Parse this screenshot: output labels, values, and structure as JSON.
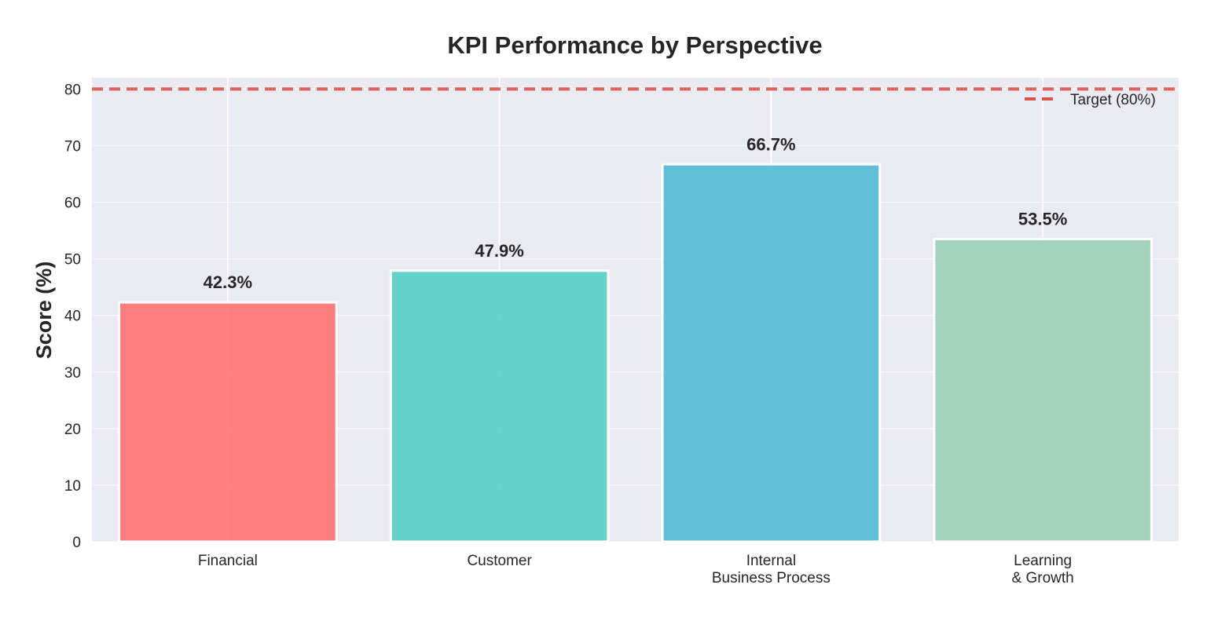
{
  "chart_data": {
    "type": "bar",
    "title": "KPI Performance by Perspective",
    "xlabel": "",
    "ylabel": "Score (%)",
    "ylim": [
      0,
      82
    ],
    "yticks": [
      0,
      10,
      20,
      30,
      40,
      50,
      60,
      70,
      80
    ],
    "grid": true,
    "categories": [
      [
        "Financial"
      ],
      [
        "Customer"
      ],
      [
        "Internal",
        "Business Process"
      ],
      [
        "Learning",
        "& Growth"
      ]
    ],
    "values": [
      42.3,
      47.9,
      66.7,
      53.5
    ],
    "data_labels": [
      "42.3%",
      "47.9%",
      "66.7%",
      "53.5%"
    ],
    "colors": [
      "#FF6B6B",
      "#4ECDC4",
      "#45B7D1",
      "#96CEB4"
    ],
    "target": {
      "value": 80,
      "label": "Target (80%)",
      "color": "#D9534F"
    },
    "legend_position": "top-right"
  }
}
